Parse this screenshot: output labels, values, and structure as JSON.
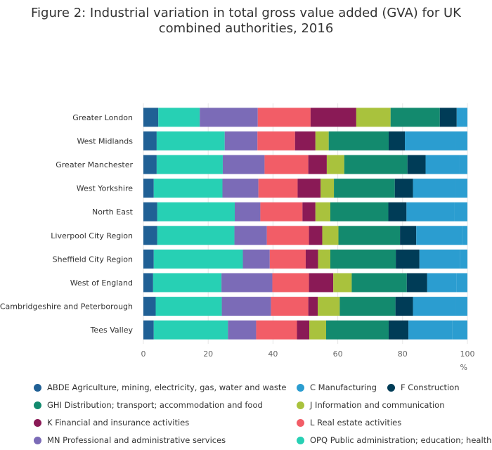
{
  "title_line1": "Figure 2: Industrial variation in total gross value added (GVA) for UK",
  "title_line2": "combined authorities, 2016",
  "chart_data": {
    "type": "bar",
    "orientation": "horizontal",
    "stacked": true,
    "title": "Figure 2: Industrial variation in total gross value added (GVA) for UK combined authorities, 2016",
    "xlabel": "%",
    "ylabel": "",
    "xlim": [
      0,
      100
    ],
    "xticks": [
      "0",
      "20",
      "40",
      "60",
      "80",
      "100"
    ],
    "categories": [
      "Greater London",
      "West Midlands",
      "Greater Manchester",
      "West Yorkshire",
      "North East",
      "Liverpool City Region",
      "Sheffield City Region",
      "West of England",
      "Cambridgeshire and Peterborough",
      "Tees Valley"
    ],
    "series": [
      {
        "name": "ABDE Agriculture, mining, electricity, gas, water and waste",
        "color": "#206095",
        "values": [
          4.6,
          4.1,
          4.1,
          3.2,
          4.3,
          4.3,
          3.2,
          3.0,
          3.8,
          3.2
        ]
      },
      {
        "name": "OPQ Public administration; education; health",
        "color": "#27d0b4",
        "values": [
          12.8,
          21.0,
          20.4,
          21.2,
          23.9,
          23.8,
          27.5,
          21.1,
          20.4,
          22.9
        ]
      },
      {
        "name": "MN Professional and administrative services",
        "color": "#7b6bb7",
        "values": [
          17.9,
          10.1,
          12.9,
          11.1,
          7.9,
          10.0,
          8.3,
          15.7,
          15.2,
          8.7
        ]
      },
      {
        "name": "L Real estate activities",
        "color": "#f25d67",
        "values": [
          16.3,
          11.6,
          13.5,
          12.1,
          13.0,
          13.0,
          11.1,
          11.3,
          11.5,
          12.6
        ]
      },
      {
        "name": "K Financial and insurance activities",
        "color": "#8a1a56",
        "values": [
          14.1,
          6.3,
          5.7,
          7.1,
          4.0,
          4.1,
          3.8,
          7.5,
          2.9,
          3.8
        ]
      },
      {
        "name": "J Information and communication",
        "color": "#a9c23d",
        "values": [
          10.6,
          4.1,
          5.4,
          4.1,
          4.6,
          5.0,
          3.8,
          5.7,
          6.8,
          5.2
        ]
      },
      {
        "name": "GHI Distribution; transport; accommodation and food",
        "color": "#138a6e",
        "values": [
          15.2,
          18.5,
          19.5,
          18.8,
          17.9,
          19.0,
          20.2,
          17.0,
          17.2,
          19.3
        ]
      },
      {
        "name": "F Construction",
        "color": "#003c57",
        "values": [
          5.2,
          5.0,
          5.6,
          5.6,
          5.6,
          5.0,
          7.3,
          6.3,
          5.4,
          6.1
        ]
      },
      {
        "name": "C Manufacturing",
        "color": "#2b9dd0",
        "values": [
          2.0,
          15.5,
          10.4,
          12.9,
          14.8,
          14.2,
          12.6,
          9.0,
          12.9,
          13.5
        ]
      }
    ]
  },
  "legend": {
    "rows": [
      [
        {
          "label": "ABDE Agriculture, mining, electricity, gas, water and waste",
          "color": "#206095"
        },
        {
          "label": "C Manufacturing",
          "color": "#2b9dd0"
        },
        {
          "label": "F Construction",
          "color": "#003c57"
        }
      ],
      [
        {
          "label": "GHI Distribution; transport; accommodation and food",
          "color": "#138a6e"
        },
        {
          "label": "J Information and communication",
          "color": "#a9c23d"
        }
      ],
      [
        {
          "label": "K Financial and insurance activities",
          "color": "#8a1a56"
        },
        {
          "label": "L Real estate activities",
          "color": "#f25d67"
        }
      ],
      [
        {
          "label": "MN Professional and administrative services",
          "color": "#7b6bb7"
        },
        {
          "label": "OPQ Public administration; education; health",
          "color": "#27d0b4"
        }
      ]
    ]
  }
}
